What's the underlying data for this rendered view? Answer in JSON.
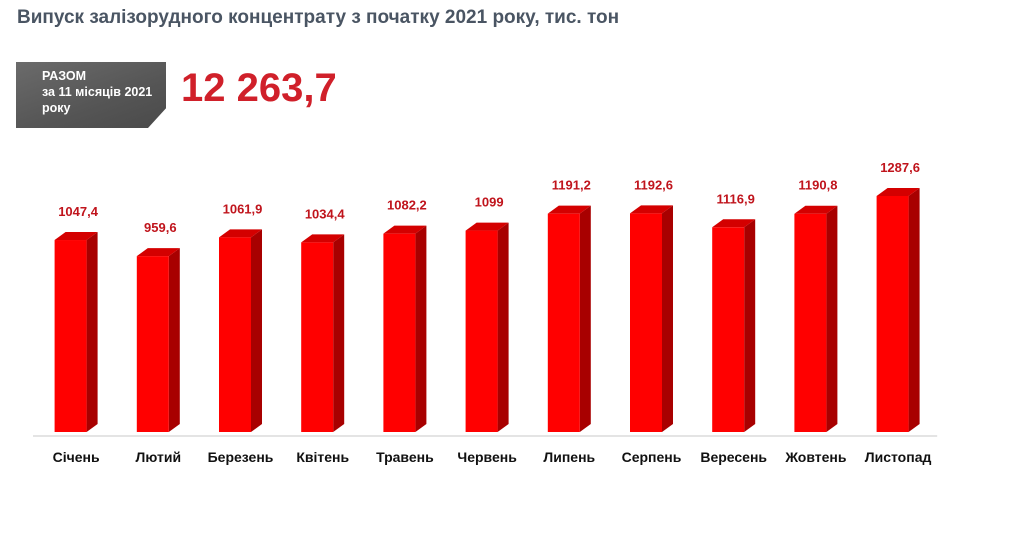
{
  "title": "Випуск залізорудного концентрату з початку 2021 року, тис. тон",
  "summary": {
    "label_lines": [
      "РАЗОМ",
      "за 11 місяців 2021",
      "року"
    ],
    "value": "12 263,7"
  },
  "colors": {
    "bar_front": "#ff0000",
    "bar_side": "#a80000",
    "bar_top": "#d40000",
    "value_label": "#c0141c",
    "axis": "#c8c8c8"
  },
  "chart_data": {
    "type": "bar",
    "title": "Випуск залізорудного концентрату з початку 2021 року, тис. тон",
    "categories": [
      "Січень",
      "Лютий",
      "Березень",
      "Квітень",
      "Травень",
      "Червень",
      "Липень",
      "Серпень",
      "Вересень",
      "Жовтень",
      "Листопад"
    ],
    "values": [
      1047.4,
      959.6,
      1061.9,
      1034.4,
      1082.2,
      1099,
      1191.2,
      1192.6,
      1116.9,
      1190.8,
      1287.6
    ],
    "value_labels": [
      "1047,4",
      "959,6",
      "1061,9",
      "1034,4",
      "1082,2",
      "1099",
      "1191,2",
      "1192,6",
      "1116,9",
      "1190,8",
      "1287,6"
    ],
    "xlabel": "",
    "ylabel": "",
    "ylim": [
      0,
      1287.6
    ],
    "grid": false,
    "legend": "none",
    "style": "3d-column"
  }
}
